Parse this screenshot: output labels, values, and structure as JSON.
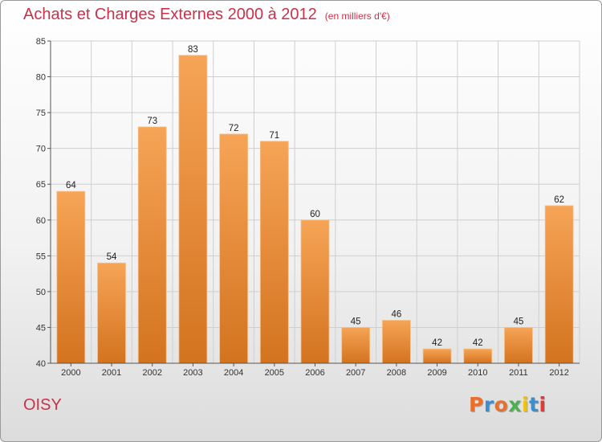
{
  "header": {
    "title": "Achats et Charges Externes 2000 à 2012",
    "subtitle": "(en milliers d'€)"
  },
  "footer": {
    "city": "OISY",
    "logo": "Proxiti",
    "logo_colors": [
      "#e8702a",
      "#3a8fd0",
      "#e8702a",
      "#4caf50",
      "#f2c200",
      "#3a8fd0",
      "#e53935"
    ]
  },
  "colors": {
    "bar_top": "#f6a456",
    "bar_bottom": "#d3731f",
    "title": "#c8324a",
    "grid": "#cfcfcf"
  },
  "chart_data": {
    "type": "bar",
    "title": "Achats et Charges Externes 2000 à 2012",
    "subtitle": "(en milliers d'€)",
    "categories": [
      "2000",
      "2001",
      "2002",
      "2003",
      "2004",
      "2005",
      "2006",
      "2007",
      "2008",
      "2009",
      "2010",
      "2011",
      "2012"
    ],
    "values": [
      64,
      54,
      73,
      83,
      72,
      71,
      60,
      45,
      46,
      42,
      42,
      45,
      62
    ],
    "ylim": [
      40,
      85
    ],
    "yticks": [
      40,
      45,
      50,
      55,
      60,
      65,
      70,
      75,
      80,
      85
    ],
    "grid": true,
    "data_labels": true
  }
}
